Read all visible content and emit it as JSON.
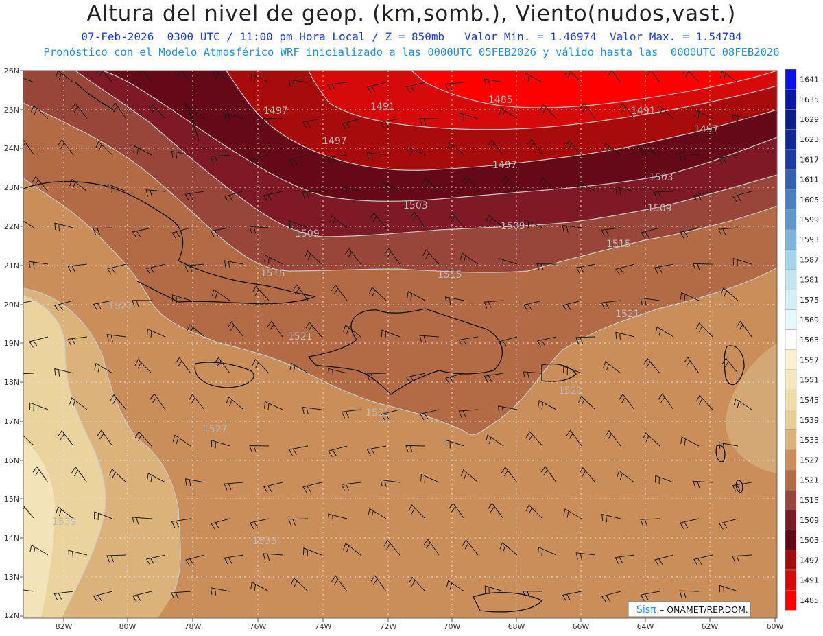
{
  "header": {
    "title": "Altura del nivel de geop. (km,somb.), Viento(nudos,vast.)",
    "line1": "07-Feb-2026  0300 UTC / 11:00 pm Hora Local / Z = 850mb   Valor Min. = 1.46974  Valor Max. = 1.54784",
    "line2": "Pronóstico con el Modelo Atmosférico WRF inicializado a las 0000UTC_05FEB2026 y válido hasta las  0000UTC_08FEB2026"
  },
  "map": {
    "lat_labels": [
      "26N",
      "25N",
      "24N",
      "23N",
      "22N",
      "21N",
      "20N",
      "19N",
      "18N",
      "17N",
      "16N",
      "15N",
      "14N",
      "13N",
      "12N"
    ],
    "lon_labels": [
      "82W",
      "80W",
      "78W",
      "76W",
      "74W",
      "72W",
      "70W",
      "68W",
      "66W",
      "64W",
      "62W",
      "60W"
    ],
    "contour_labels": [
      "1485",
      "1491",
      "1491",
      "1497",
      "1497",
      "1497",
      "1497",
      "1503",
      "1503",
      "1509",
      "1509",
      "1509",
      "1515",
      "1515",
      "1515",
      "1521",
      "1521",
      "1521",
      "1521",
      "1527",
      "1527",
      "1533",
      "1539"
    ]
  },
  "colorbar": {
    "labels": [
      "1641",
      "1635",
      "1629",
      "1623",
      "1617",
      "1611",
      "1605",
      "1599",
      "1593",
      "1587",
      "1581",
      "1575",
      "1569",
      "1563",
      "1557",
      "1551",
      "1545",
      "1539",
      "1533",
      "1527",
      "1521",
      "1515",
      "1509",
      "1503",
      "1497",
      "1491",
      "1485"
    ],
    "colors": [
      "#0a14e6",
      "#0a18a8",
      "#0c1e8c",
      "#10289a",
      "#1e3ca8",
      "#3561b5",
      "#4a80c2",
      "#5f97cc",
      "#80b3dc",
      "#a4d6ea",
      "#c2e6f0",
      "#d4f0f5",
      "#e6f8fa",
      "#ffffff",
      "#faf1ce",
      "#f5e8bd",
      "#efdcaa",
      "#e7cd96",
      "#dbb37a",
      "#c98e5a",
      "#b36b45",
      "#98453a",
      "#7d1a26",
      "#650818",
      "#a80b0b",
      "#d60a0a",
      "#ff0000"
    ]
  },
  "credit": {
    "brand": "Sisπ",
    "text": "– ONAMET/REP.DOM."
  },
  "colors": {
    "title": "#222222",
    "line1": "#1a3de0",
    "line2": "#1e8fe0",
    "brand": "#1e8fe0"
  }
}
